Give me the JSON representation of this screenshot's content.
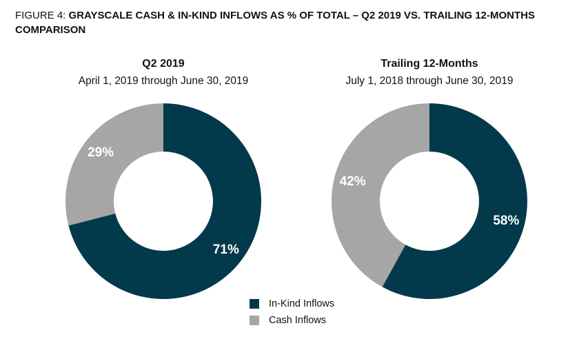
{
  "figure": {
    "prefix": "FIGURE 4:",
    "title": "GRAYSCALE CASH & IN-KIND INFLOWS AS % OF TOTAL – Q2 2019 VS. TRAILING 12-MONTHS COMPARISON"
  },
  "colors": {
    "in_kind": "#023A4B",
    "cash": "#A6A6A6"
  },
  "chart_data": [
    {
      "type": "pie",
      "style": "donut",
      "title": "Q2 2019",
      "subtitle": "April 1, 2019 through June 30, 2019",
      "slices": [
        {
          "name": "In-Kind Inflows",
          "value": 71,
          "label": "71%"
        },
        {
          "name": "Cash Inflows",
          "value": 29,
          "label": "29%"
        }
      ]
    },
    {
      "type": "pie",
      "style": "donut",
      "title": "Trailing 12-Months",
      "subtitle": "July 1, 2018 through June 30, 2019",
      "slices": [
        {
          "name": "In-Kind Inflows",
          "value": 58,
          "label": "58%"
        },
        {
          "name": "Cash Inflows",
          "value": 42,
          "label": "42%"
        }
      ]
    }
  ],
  "legend": {
    "position": "bottom-center",
    "items": [
      {
        "label": "In-Kind Inflows",
        "color": "#023A4B"
      },
      {
        "label": "Cash Inflows",
        "color": "#A6A6A6"
      }
    ]
  }
}
